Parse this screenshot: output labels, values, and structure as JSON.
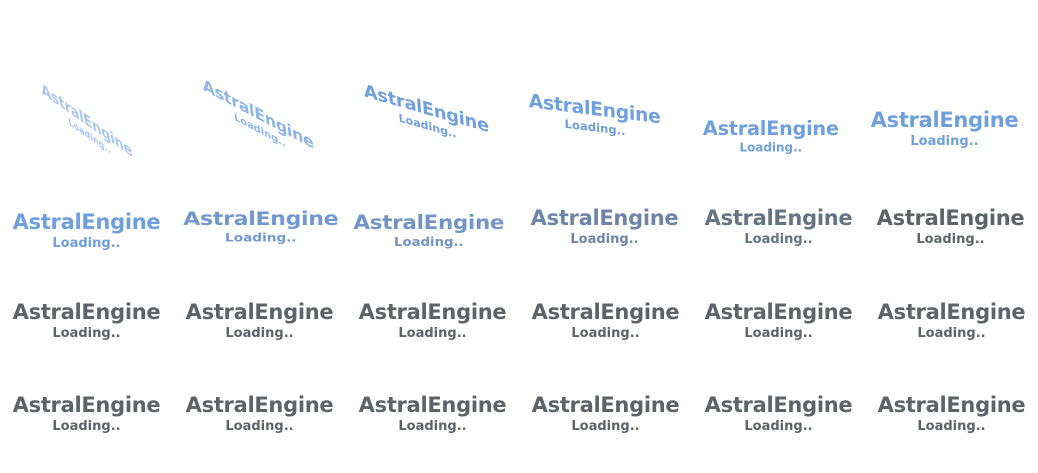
{
  "splash": {
    "title": "AstralEngine",
    "subtitle": "Loading.."
  },
  "colors": {
    "animated_blue": "#6f9fdd",
    "transition_blue_gray": "#7f94b5",
    "final_gray": "#5f6368"
  },
  "frames": [
    {
      "title": "AstralEngine",
      "subtitle": "Loading.."
    },
    {
      "title": "AstralEngine",
      "subtitle": "Loading.."
    },
    {
      "title": "AstralEngine",
      "subtitle": "Loading.."
    },
    {
      "title": "AstralEngine",
      "subtitle": "Loading.."
    },
    {
      "title": "AstralEngine",
      "subtitle": "Loading.."
    },
    {
      "title": "AstralEngine",
      "subtitle": "Loading.."
    },
    {
      "title": "AstralEngine",
      "subtitle": "Loading.."
    },
    {
      "title": "AstralEngine",
      "subtitle": "Loading.."
    },
    {
      "title": "AstralEngine",
      "subtitle": "Loading.."
    },
    {
      "title": "AstralEngine",
      "subtitle": "Loading.."
    },
    {
      "title": "AstralEngine",
      "subtitle": "Loading.."
    },
    {
      "title": "AstralEngine",
      "subtitle": "Loading.."
    },
    {
      "title": "AstralEngine",
      "subtitle": "Loading.."
    },
    {
      "title": "AstralEngine",
      "subtitle": "Loading.."
    },
    {
      "title": "AstralEngine",
      "subtitle": "Loading.."
    },
    {
      "title": "AstralEngine",
      "subtitle": "Loading.."
    },
    {
      "title": "AstralEngine",
      "subtitle": "Loading.."
    },
    {
      "title": "AstralEngine",
      "subtitle": "Loading.."
    },
    {
      "title": "AstralEngine",
      "subtitle": "Loading.."
    },
    {
      "title": "AstralEngine",
      "subtitle": "Loading.."
    },
    {
      "title": "AstralEngine",
      "subtitle": "Loading.."
    },
    {
      "title": "AstralEngine",
      "subtitle": "Loading.."
    },
    {
      "title": "AstralEngine",
      "subtitle": "Loading.."
    },
    {
      "title": "AstralEngine",
      "subtitle": "Loading.."
    }
  ]
}
